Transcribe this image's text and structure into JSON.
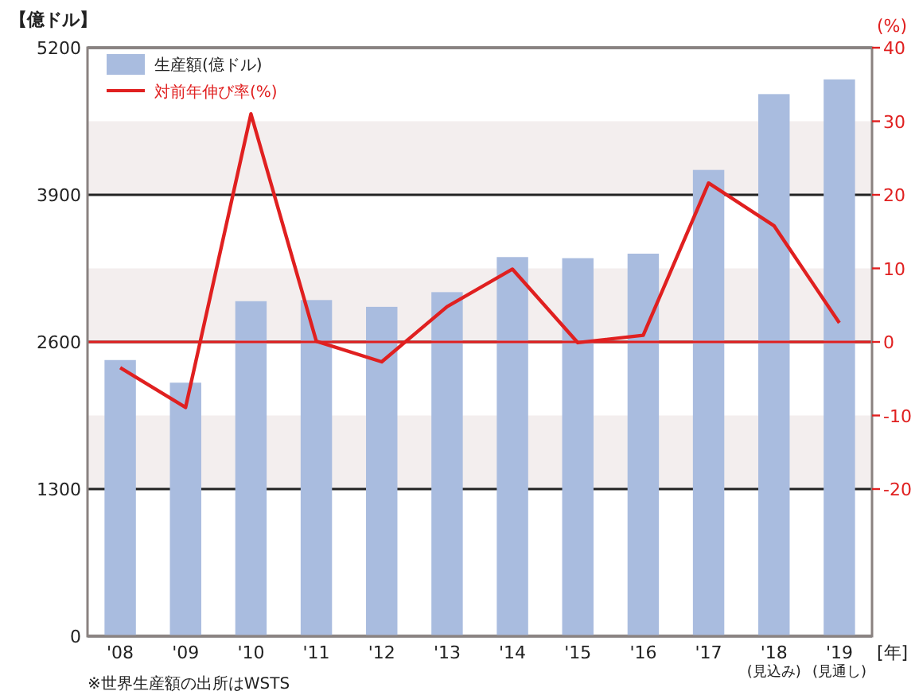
{
  "chart_data": {
    "type": "bar",
    "categories": [
      "'08",
      "'09",
      "'10",
      "'11",
      "'12",
      "'13",
      "'14",
      "'15",
      "'16",
      "'17",
      "'18\n(見込み)",
      "'19\n(見通し)"
    ],
    "series": [
      {
        "name": "生産額(億ドル)",
        "color": "#a9bcdf",
        "values": [
          2440,
          2240,
          2960,
          2970,
          2910,
          3040,
          3350,
          3340,
          3380,
          4120,
          4790,
          4920
        ]
      },
      {
        "name": "対前年伸び率(%)",
        "type": "line",
        "axis": "y2",
        "color": "#e02020",
        "values": [
          -3.5,
          -8.9,
          31,
          0.1,
          -2.7,
          4.8,
          9.9,
          -0.1,
          0.9,
          21.6,
          15.8,
          2.6
        ]
      }
    ],
    "ylabel": "【億ドル】",
    "y2label": "(%)",
    "xlabel": "[年]",
    "ylim": [
      0,
      5200
    ],
    "yticks": [
      0,
      1300,
      2600,
      3900,
      5200
    ],
    "y2lim": [
      -40,
      40
    ],
    "y2ticks": [
      -20,
      -10,
      0,
      10,
      20,
      30,
      40
    ],
    "grid": "y",
    "legend": "top left",
    "marker": "none",
    "line_style": "solid",
    "bands": [
      {
        "axis": "y2",
        "from": 20,
        "to": 30,
        "color": "#f3eeee"
      },
      {
        "axis": "y2",
        "from": 0,
        "to": 10,
        "color": "#f3eeee"
      },
      {
        "axis": "y2",
        "from": -20,
        "to": -10,
        "color": "#f3eeee"
      }
    ],
    "ref_lines": [
      {
        "axis": "y2",
        "value": 0,
        "color": "#e02020"
      }
    ],
    "annotations": [
      "※世界生産額の出所はWSTS"
    ]
  }
}
